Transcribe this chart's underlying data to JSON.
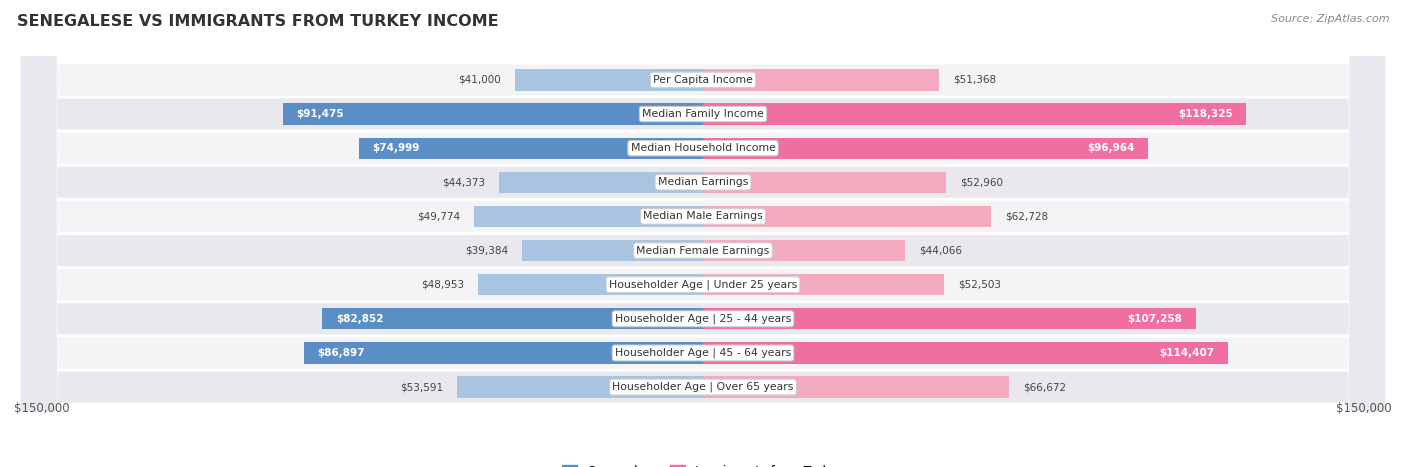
{
  "title": "SENEGALESE VS IMMIGRANTS FROM TURKEY INCOME",
  "source": "Source: ZipAtlas.com",
  "categories": [
    "Per Capita Income",
    "Median Family Income",
    "Median Household Income",
    "Median Earnings",
    "Median Male Earnings",
    "Median Female Earnings",
    "Householder Age | Under 25 years",
    "Householder Age | 25 - 44 years",
    "Householder Age | 45 - 64 years",
    "Householder Age | Over 65 years"
  ],
  "senegalese": [
    41000,
    91475,
    74999,
    44373,
    49774,
    39384,
    48953,
    82852,
    86897,
    53591
  ],
  "turkey": [
    51368,
    118325,
    96964,
    52960,
    62728,
    44066,
    52503,
    107258,
    114407,
    66672
  ],
  "senegalese_labels": [
    "$41,000",
    "$91,475",
    "$74,999",
    "$44,373",
    "$49,774",
    "$39,384",
    "$48,953",
    "$82,852",
    "$86,897",
    "$53,591"
  ],
  "turkey_labels": [
    "$51,368",
    "$118,325",
    "$96,964",
    "$52,960",
    "$62,728",
    "$44,066",
    "$52,503",
    "$107,258",
    "$114,407",
    "$66,672"
  ],
  "max_val": 150000,
  "color_senegalese_dark": "#5B8EC4",
  "color_senegalese_light": "#A8C4E0",
  "color_turkey_dark": "#F06FA0",
  "color_turkey_light": "#F4AABF",
  "background_color": "#FFFFFF",
  "row_bg_light": "#F4F4F6",
  "row_bg_dark": "#E8E8EE",
  "highlight_rows": [
    1,
    2,
    7,
    8
  ],
  "legend_labels": [
    "Senegalese",
    "Immigrants from Turkey"
  ]
}
